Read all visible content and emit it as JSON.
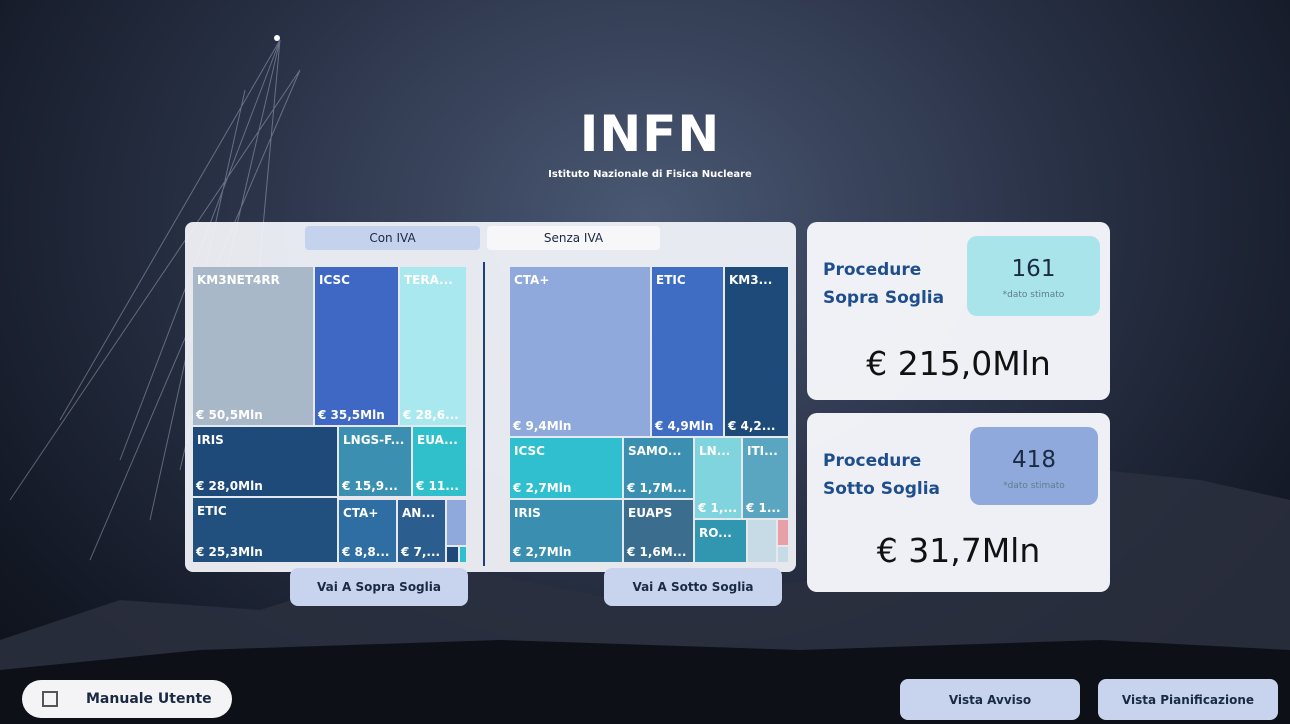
{
  "logo": {
    "title": "INFN",
    "subtitle": "Istituto Nazionale di Fisica Nucleare"
  },
  "tabs": [
    "Con IVA",
    "Senza IVA"
  ],
  "treemap_left": [
    {
      "label": "KM3NET4RR",
      "value": "€ 50,5Mln"
    },
    {
      "label": "ICSC",
      "value": "€ 35,5Mln"
    },
    {
      "label": "TERA...",
      "value": "€ 28,6..."
    },
    {
      "label": "IRIS",
      "value": "€ 28,0Mln"
    },
    {
      "label": "LNGS-F...",
      "value": "€ 15,9..."
    },
    {
      "label": "EUA...",
      "value": "€ 11..."
    },
    {
      "label": "ETIC",
      "value": "€ 25,3Mln"
    },
    {
      "label": "CTA+",
      "value": "€ 8,8..."
    },
    {
      "label": "AN...",
      "value": "€ 7,..."
    }
  ],
  "treemap_right": [
    {
      "label": "CTA+",
      "value": "€ 9,4Mln"
    },
    {
      "label": "ETIC",
      "value": "€ 4,9Mln"
    },
    {
      "label": "KM3...",
      "value": "€ 4,2..."
    },
    {
      "label": "ICSC",
      "value": "€ 2,7Mln"
    },
    {
      "label": "SAMO...",
      "value": "€ 1,7M..."
    },
    {
      "label": "LN...",
      "value": "€ 1,..."
    },
    {
      "label": "ITI...",
      "value": "€ 1..."
    },
    {
      "label": "IRIS",
      "value": "€ 2,7Mln"
    },
    {
      "label": "EUAPS",
      "value": "€ 1,6M..."
    },
    {
      "label": "RO..."
    }
  ],
  "nav_buttons": [
    "Vai A Sopra Soglia",
    "Vai A Sotto Soglia"
  ],
  "cards": [
    {
      "title": "Procedure Sopra Soglia",
      "count": "161",
      "note": "*dato stimato",
      "amount": "€ 215,0Mln"
    },
    {
      "title": "Procedure Sotto Soglia",
      "count": "418",
      "note": "*dato stimato",
      "amount": "€ 31,7Mln"
    }
  ],
  "footer_buttons": [
    "Manuale Utente",
    "Vista Avviso",
    "Vista Pianificazione"
  ]
}
